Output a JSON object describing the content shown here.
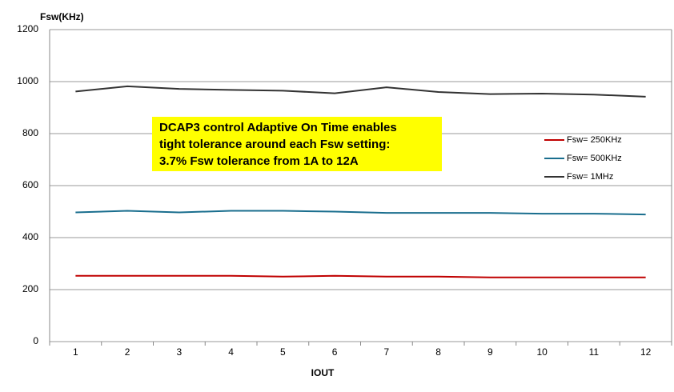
{
  "chart_data": {
    "type": "line",
    "title": "Fsw(KHz)",
    "x_label": "IOUT",
    "categories": [
      "1",
      "2",
      "3",
      "4",
      "5",
      "6",
      "7",
      "8",
      "9",
      "10",
      "11",
      "12"
    ],
    "series": [
      {
        "name": "Fsw= 250KHz",
        "color": "#c00000",
        "values": [
          253,
          253,
          253,
          253,
          250,
          253,
          250,
          250,
          247,
          247,
          247,
          247
        ]
      },
      {
        "name": "Fsw= 500KHz",
        "color": "#1a6e8e",
        "values": [
          497,
          503,
          497,
          503,
          503,
          500,
          495,
          495,
          495,
          492,
          492,
          489
        ]
      },
      {
        "name": "Fsw= 1MHz",
        "color": "#333333",
        "values": [
          962,
          982,
          972,
          968,
          965,
          955,
          978,
          960,
          952,
          954,
          950,
          942
        ]
      }
    ],
    "annotation": [
      "DCAP3 control Adaptive On Time enables",
      "tight tolerance around each Fsw setting:",
      "3.7% Fsw tolerance from 1A to 12A"
    ],
    "ylim": [
      0,
      1200
    ],
    "yticks": [
      0,
      200,
      400,
      600,
      800,
      1000,
      1200
    ],
    "grid": true,
    "legend": "right"
  }
}
